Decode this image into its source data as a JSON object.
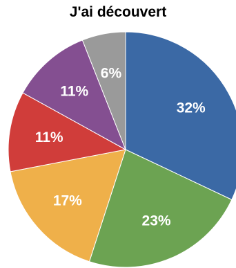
{
  "chart_data": {
    "type": "pie",
    "title": "J'ai découvert",
    "slices": [
      {
        "label": "32%",
        "value": 32,
        "color": "#3b69a5"
      },
      {
        "label": "23%",
        "value": 23,
        "color": "#6ca352"
      },
      {
        "label": "17%",
        "value": 17,
        "color": "#efb04a"
      },
      {
        "label": "11%",
        "value": 11,
        "color": "#d03d3a"
      },
      {
        "label": "11%",
        "value": 11,
        "color": "#844f91"
      },
      {
        "label": "6%",
        "value": 6,
        "color": "#9a9a9a"
      }
    ],
    "start": "12 o'clock",
    "direction": "clockwise",
    "legend": "none"
  }
}
